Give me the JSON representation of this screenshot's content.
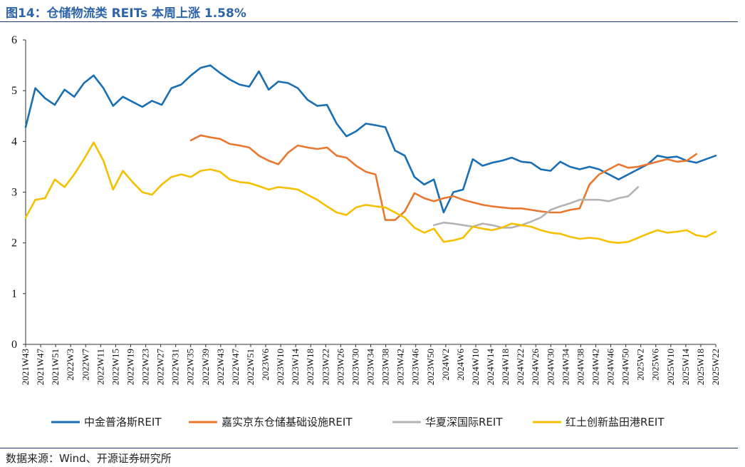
{
  "header": {
    "title": "图14：仓储物流类 REITs 本周上涨 1.58%"
  },
  "footer": {
    "source": "数据来源：Wind、开源证券研究所"
  },
  "chart_data": {
    "type": "line",
    "title": "图14：仓储物流类 REITs 本周上涨 1.58%",
    "xlabel": "",
    "ylabel": "",
    "ylim": [
      0,
      6
    ],
    "yticks": [
      0,
      1,
      2,
      3,
      4,
      5,
      6
    ],
    "grid": false,
    "legend_position": "bottom",
    "x_tick_labels": [
      "2021W43",
      "2021W47",
      "2021W51",
      "2022W3",
      "2022W7",
      "2022W11",
      "2022W15",
      "2022W19",
      "2022W23",
      "2022W27",
      "2022W31",
      "2022W35",
      "2022W39",
      "2022W43",
      "2022W47",
      "2022W51",
      "2023W6",
      "2023W10",
      "2023W14",
      "2023W18",
      "2023W22",
      "2023W26",
      "2023W30",
      "2023W34",
      "2023W38",
      "2023W42",
      "2023W46",
      "2023W50",
      "2024W2",
      "2024W6",
      "2024W10",
      "2024W14",
      "2024W18",
      "2024W22",
      "2024W26",
      "2024W30",
      "2024W34",
      "2024W38",
      "2024W42",
      "2024W46",
      "2024W50",
      "2025W2",
      "2025W6",
      "2025W10",
      "2025W14",
      "2025W18",
      "2025W22"
    ],
    "series": [
      {
        "name": "中金普洛斯REIT",
        "color": "#1a6fb4",
        "values": [
          4.28,
          5.05,
          4.85,
          4.72,
          5.02,
          4.88,
          5.15,
          5.3,
          5.05,
          4.7,
          4.88,
          4.78,
          4.68,
          4.8,
          4.72,
          5.05,
          5.12,
          5.3,
          5.45,
          5.5,
          5.35,
          5.22,
          5.12,
          5.08,
          5.38,
          5.02,
          5.18,
          5.15,
          5.05,
          4.82,
          4.7,
          4.72,
          4.35,
          4.1,
          4.2,
          4.35,
          4.32,
          4.28,
          3.82,
          3.72,
          3.3,
          3.15,
          3.25,
          2.6,
          3.0,
          3.05,
          3.65,
          3.52,
          3.58,
          3.62,
          3.68,
          3.6,
          3.58,
          3.45,
          3.42,
          3.6,
          3.5,
          3.45,
          3.5,
          3.45,
          3.35,
          3.25,
          3.35,
          3.45,
          3.55,
          3.72,
          3.68,
          3.7,
          3.62,
          3.58,
          3.65,
          3.72
        ]
      },
      {
        "name": "嘉实京东仓储基础设施REIT",
        "color": "#e8782f",
        "start_index": 17,
        "values": [
          4.02,
          4.12,
          4.08,
          4.05,
          3.95,
          3.92,
          3.88,
          3.72,
          3.62,
          3.55,
          3.78,
          3.92,
          3.88,
          3.85,
          3.88,
          3.72,
          3.68,
          3.52,
          3.4,
          3.35,
          2.45,
          2.45,
          2.62,
          2.98,
          2.88,
          2.82,
          2.88,
          2.92,
          2.85,
          2.8,
          2.75,
          2.72,
          2.7,
          2.68,
          2.68,
          2.65,
          2.62,
          2.6,
          2.6,
          2.65,
          2.68,
          3.15,
          3.35,
          3.45,
          3.55,
          3.48,
          3.5,
          3.55,
          3.6,
          3.65,
          3.6,
          3.62,
          3.75
        ]
      },
      {
        "name": "华夏深国际REIT",
        "color": "#b3b3b3",
        "start_index": 42,
        "values": [
          2.35,
          2.4,
          2.38,
          2.35,
          2.32,
          2.38,
          2.35,
          2.3,
          2.3,
          2.35,
          2.42,
          2.5,
          2.65,
          2.72,
          2.78,
          2.85,
          2.85,
          2.85,
          2.82,
          2.88,
          2.92,
          3.1
        ]
      },
      {
        "name": "红土创新盐田港REIT",
        "color": "#f5c000",
        "values": [
          2.5,
          2.85,
          2.88,
          3.25,
          3.1,
          3.35,
          3.65,
          3.98,
          3.62,
          3.05,
          3.42,
          3.2,
          3.0,
          2.95,
          3.15,
          3.3,
          3.35,
          3.3,
          3.42,
          3.45,
          3.4,
          3.25,
          3.2,
          3.18,
          3.12,
          3.05,
          3.1,
          3.08,
          3.05,
          2.95,
          2.85,
          2.72,
          2.6,
          2.55,
          2.7,
          2.75,
          2.72,
          2.7,
          2.6,
          2.5,
          2.3,
          2.2,
          2.28,
          2.02,
          2.05,
          2.1,
          2.32,
          2.28,
          2.25,
          2.3,
          2.38,
          2.35,
          2.32,
          2.25,
          2.2,
          2.18,
          2.12,
          2.08,
          2.1,
          2.08,
          2.02,
          2.0,
          2.02,
          2.1,
          2.18,
          2.25,
          2.2,
          2.22,
          2.25,
          2.15,
          2.12,
          2.22
        ]
      }
    ]
  }
}
